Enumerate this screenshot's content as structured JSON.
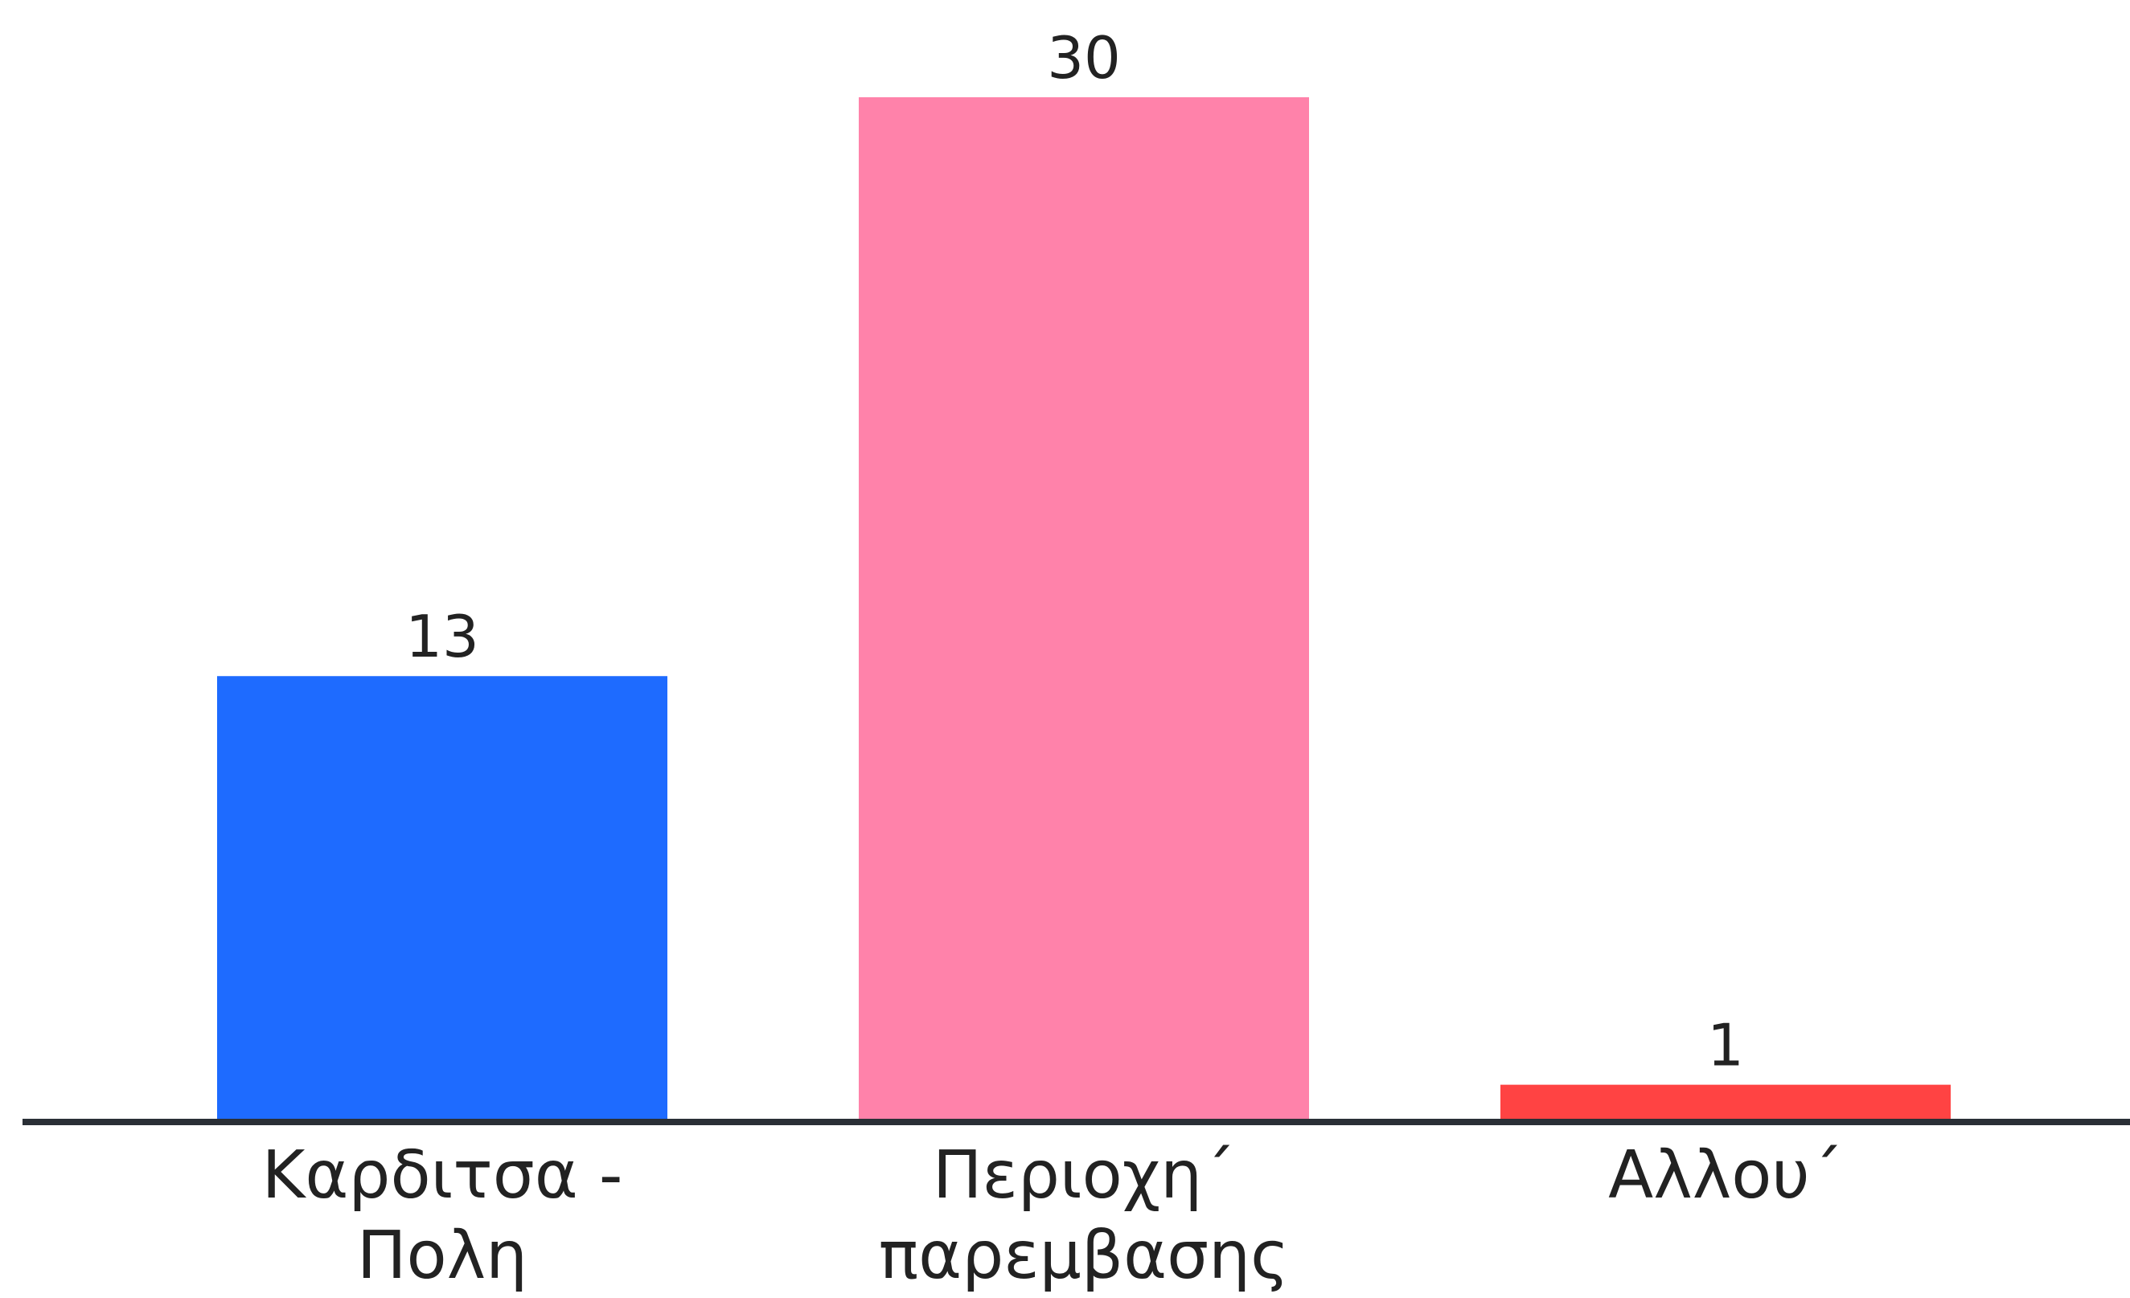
{
  "chart_data": {
    "type": "bar",
    "categories": [
      [
        "Καρδιτσα -",
        "Πολη"
      ],
      [
        "Περιοχη´",
        "παρεμβασης"
      ],
      [
        "Αλλου´"
      ]
    ],
    "values": [
      13,
      30,
      1
    ],
    "data_labels": [
      "13",
      "30",
      "1"
    ],
    "colors": [
      "#1e6bff",
      "#ff82aa",
      "#ff4343"
    ],
    "title": "",
    "xlabel": "",
    "ylabel": "",
    "ylim": [
      0,
      30
    ],
    "grid": false,
    "legend": "none"
  }
}
